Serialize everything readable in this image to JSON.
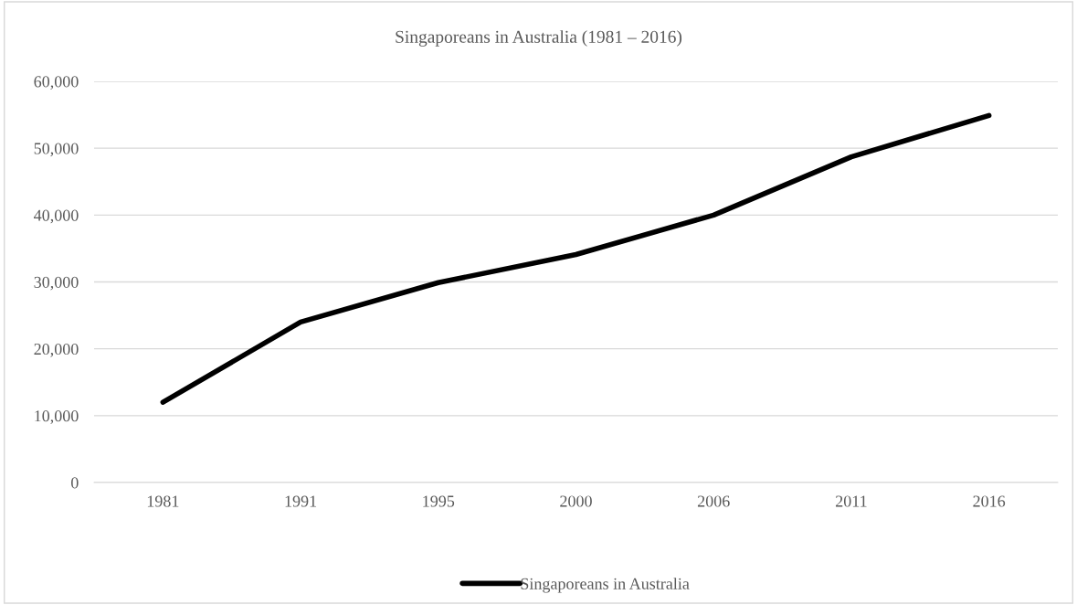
{
  "chart_data": {
    "type": "line",
    "title": "Singaporeans in Australia (1981 – 2016)",
    "categories": [
      "1981",
      "1991",
      "1995",
      "2000",
      "2006",
      "2011",
      "2016"
    ],
    "series": [
      {
        "name": "Singaporeans in Australia",
        "color": "#000000",
        "values": [
          12000,
          24000,
          29900,
          34100,
          40000,
          48700,
          54900
        ]
      }
    ],
    "ylim": [
      0,
      60000
    ],
    "yticks": [
      {
        "value": 0,
        "label": "0"
      },
      {
        "value": 10000,
        "label": "10,000"
      },
      {
        "value": 20000,
        "label": "20,000"
      },
      {
        "value": 30000,
        "label": "30,000"
      },
      {
        "value": 40000,
        "label": "40,000"
      },
      {
        "value": 50000,
        "label": "50,000"
      },
      {
        "value": 60000,
        "label": "60,000"
      }
    ],
    "grid": "y",
    "legend": "bottom",
    "marker": "none",
    "line_style": "solid"
  }
}
